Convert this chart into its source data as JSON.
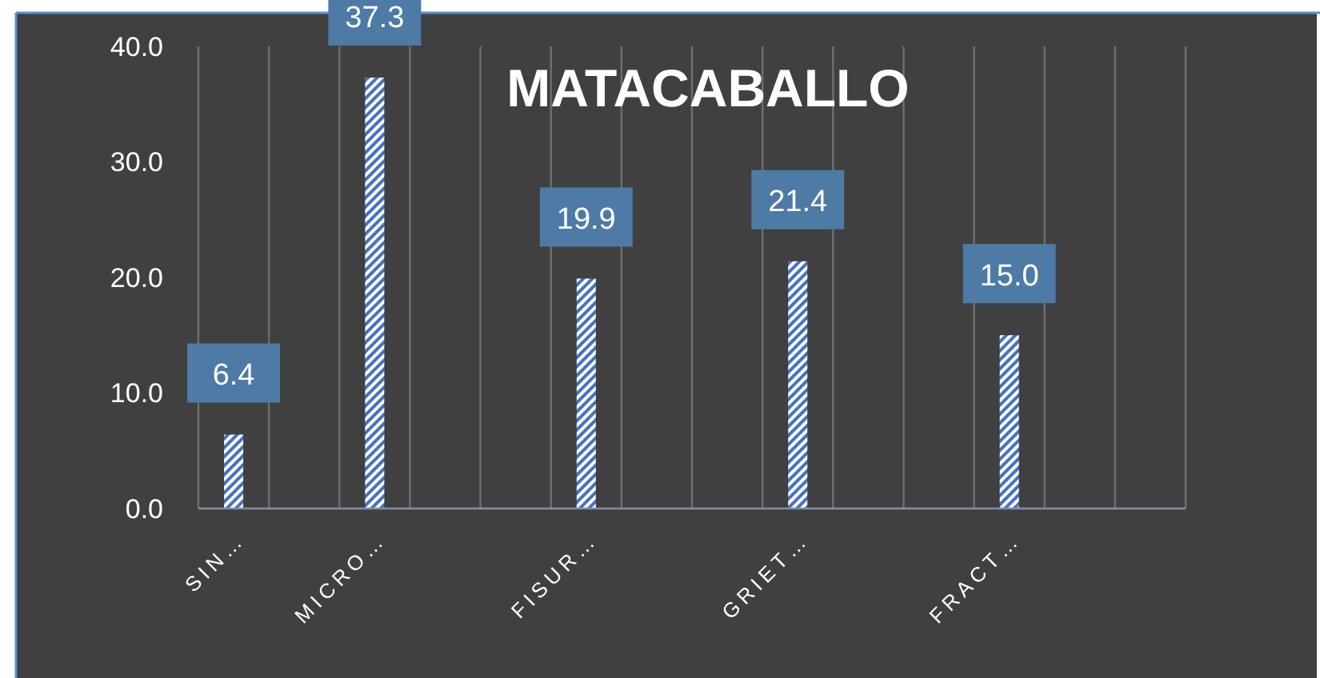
{
  "chart_data": {
    "type": "bar",
    "title": "MATACABALLO",
    "categories": [
      "SIN…",
      null,
      "MICRO…",
      null,
      null,
      "FISUR…",
      null,
      null,
      "GRIET…",
      null,
      null,
      "FRACT…",
      null,
      null
    ],
    "values": [
      6.4,
      null,
      37.3,
      null,
      null,
      19.9,
      null,
      null,
      21.4,
      null,
      null,
      15.0,
      null,
      null
    ],
    "color": "#4472c4",
    "ylim": [
      0,
      40
    ],
    "yticks": [
      {
        "value": 0,
        "label": "0.0"
      },
      {
        "value": 10,
        "label": "10.0"
      },
      {
        "value": 20,
        "label": "20.0"
      },
      {
        "value": 30,
        "label": "30.0"
      },
      {
        "value": 40,
        "label": "40.0"
      }
    ],
    "value_labels": [
      "6.4",
      null,
      "37.3",
      null,
      null,
      "19.9",
      null,
      null,
      "21.4",
      null,
      null,
      "15.0",
      null,
      null
    ],
    "grid": "x"
  }
}
